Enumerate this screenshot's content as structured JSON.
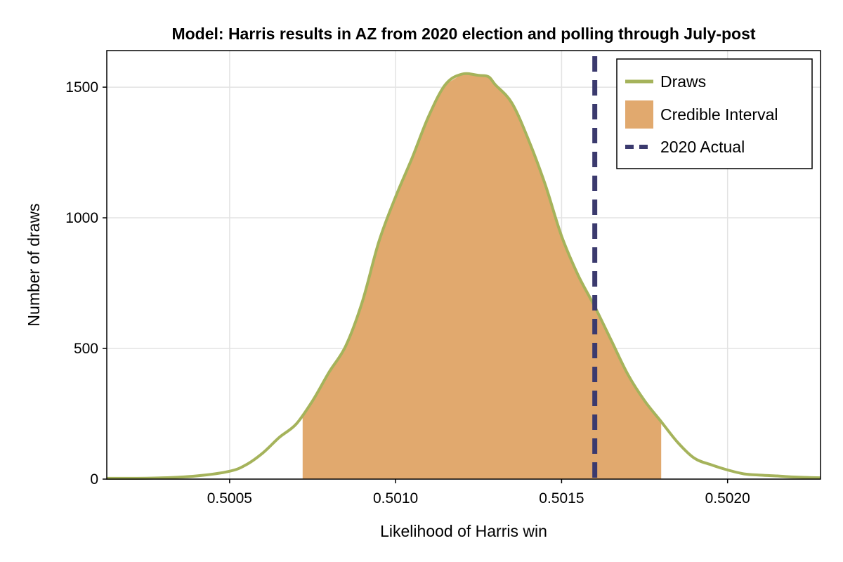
{
  "chart_data": {
    "type": "area",
    "title": "Model: Harris results in AZ from 2020 election and polling through July-post",
    "xlabel": "Likelihood of Harris win",
    "ylabel": "Number of draws",
    "xlim": [
      0.50013,
      0.50228
    ],
    "ylim": [
      0,
      1640
    ],
    "x_ticks": [
      0.5005,
      0.501,
      0.5015,
      0.502
    ],
    "x_tick_labels": [
      "0.5005",
      "0.5010",
      "0.5015",
      "0.5020"
    ],
    "y_ticks": [
      0,
      500,
      1000,
      1500
    ],
    "y_tick_labels": [
      "0",
      "500",
      "1000",
      "1500"
    ],
    "grid": true,
    "legend_position": "top-right",
    "series": [
      {
        "name": "Draws",
        "kind": "line",
        "color": "#a5b35b",
        "x": [
          0.50013,
          0.5002,
          0.5003,
          0.5004,
          0.5005,
          0.50055,
          0.5006,
          0.50065,
          0.5007,
          0.50075,
          0.5008,
          0.50085,
          0.5009,
          0.50095,
          0.501,
          0.50105,
          0.5011,
          0.50115,
          0.5012,
          0.50125,
          0.50128,
          0.5013,
          0.50135,
          0.5014,
          0.50145,
          0.5015,
          0.50155,
          0.5016,
          0.50165,
          0.5017,
          0.50175,
          0.5018,
          0.50185,
          0.5019,
          0.50195,
          0.502,
          0.50205,
          0.5021,
          0.50215,
          0.5022,
          0.50228
        ],
        "y": [
          3,
          3,
          5,
          12,
          30,
          55,
          100,
          160,
          210,
          300,
          410,
          510,
          680,
          910,
          1080,
          1230,
          1390,
          1510,
          1550,
          1545,
          1540,
          1510,
          1440,
          1300,
          1130,
          930,
          780,
          660,
          530,
          400,
          300,
          220,
          140,
          80,
          55,
          35,
          20,
          15,
          12,
          8,
          5
        ]
      },
      {
        "name": "Credible Interval",
        "kind": "band",
        "color": "#e1a96e",
        "x_range": [
          0.50072,
          0.5018
        ]
      },
      {
        "name": "2020 Actual",
        "kind": "vline",
        "color": "#3b3a6e",
        "x": 0.5016
      }
    ]
  }
}
